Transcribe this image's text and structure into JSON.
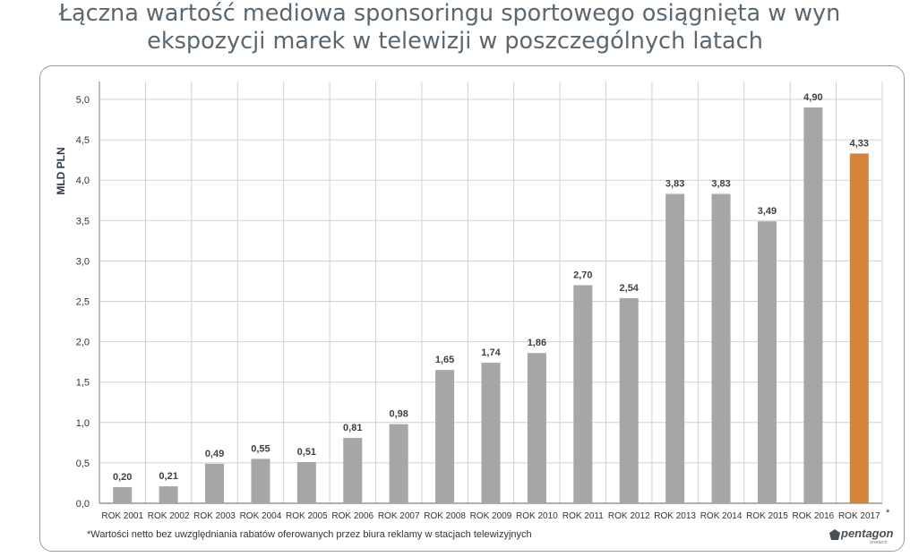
{
  "title": {
    "line1": "Łączna wartość mediowa sponsoringu sportowego osiągnięta w wyn",
    "line2": "ekspozycji marek w telewizji w poszczególnych latach"
  },
  "chart_data": {
    "type": "bar",
    "title": "Łączna wartość mediowa sponsoringu sportowego osiągnięta w wyniku ekspozycji marek w telewizji w poszczególnych latach",
    "ylabel": "MLD PLN",
    "xlabel": "",
    "ylim": [
      0,
      5.0
    ],
    "yticks": [
      "0,0",
      "0,5",
      "1,0",
      "1,5",
      "2,0",
      "2,5",
      "3,0",
      "3,5",
      "4,0",
      "4,5",
      "5,0"
    ],
    "categories": [
      "ROK 2001",
      "ROK 2002",
      "ROK 2003",
      "ROK 2004",
      "ROK 2005",
      "ROK 2006",
      "ROK 2007",
      "ROK 2008",
      "ROK 2009",
      "ROK 2010",
      "ROK 2011",
      "ROK 2012",
      "ROK 2013",
      "ROK 2014",
      "ROK 2015",
      "ROK 2016",
      "ROK 2017"
    ],
    "values": [
      0.2,
      0.21,
      0.49,
      0.55,
      0.51,
      0.81,
      0.98,
      1.65,
      1.74,
      1.86,
      2.7,
      2.54,
      3.83,
      3.83,
      3.49,
      4.9,
      4.33
    ],
    "value_labels": [
      "0,20",
      "0,21",
      "0,49",
      "0,55",
      "0,51",
      "0,81",
      "0,98",
      "1,65",
      "1,74",
      "1,86",
      "2,70",
      "2,54",
      "3,83",
      "3,83",
      "3,49",
      "4,90",
      "4,33"
    ],
    "highlight_index": 16,
    "asterisk": "*",
    "grid": true,
    "colors": {
      "bar": "#a6a6a6",
      "highlight": "#d6843a",
      "grid": "#d0d0d0",
      "axis": "#7f7f7f",
      "text": "#333333"
    }
  },
  "footnote": "*Wartości netto bez uwzględniania rabatów oferowanych przez biura reklamy w stacjach telewizyjnych",
  "logo": {
    "name": "pentagon",
    "sub": "research"
  }
}
